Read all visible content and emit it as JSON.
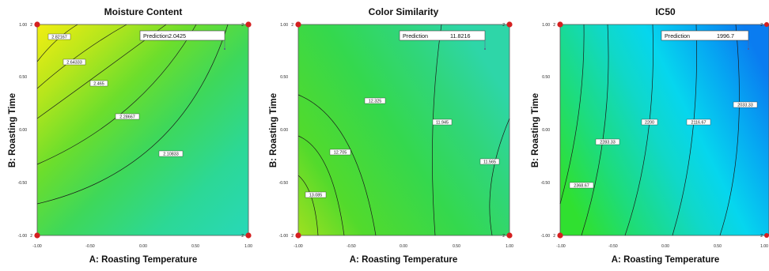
{
  "chart_data": [
    {
      "type": "contour",
      "title": "Moisture Content",
      "xlabel": "A: Roasting Temperature",
      "ylabel": "B: Roasting Time",
      "xlim": [
        -1.0,
        1.0
      ],
      "ylim": [
        -1.0,
        1.0
      ],
      "x_ticks": [
        "-1.00",
        "-0.50",
        "0.00",
        "0.50",
        "1.00"
      ],
      "y_ticks": [
        "1.00",
        "0.50",
        "0.00",
        "-0.50",
        "-1.00"
      ],
      "corner_labels": [
        "2",
        "2",
        "2",
        "2"
      ],
      "contour_labels": [
        "2.82167",
        "2.64333",
        "2.465",
        "2.28667",
        "2.10833"
      ],
      "prediction": {
        "label": "Prediction",
        "value": "2.0425"
      },
      "colors": {
        "low": "#28d8b8",
        "high": "#f2ee12"
      }
    },
    {
      "type": "contour",
      "title": "Color Similarity",
      "xlabel": "A: Roasting Temperature",
      "ylabel": "B: Roasting Time",
      "xlim": [
        -1.0,
        1.0
      ],
      "ylim": [
        -1.0,
        1.0
      ],
      "x_ticks": [
        "-1.00",
        "-0.50",
        "0.00",
        "0.50",
        "1.00"
      ],
      "y_ticks": [
        "1.00",
        "0.50",
        "0.00",
        "-0.50",
        "-1.00"
      ],
      "corner_labels": [
        "2",
        "2",
        "2",
        "2"
      ],
      "contour_labels": [
        "12.325",
        "12.705",
        "13.085",
        "11.945",
        "11.565"
      ],
      "prediction": {
        "label": "Prediction",
        "value": "11.8216"
      },
      "colors": {
        "low": "#2ed6a8",
        "high": "#9ee020"
      }
    },
    {
      "type": "contour",
      "title": "IC50",
      "xlabel": "A: Roasting Temperature",
      "ylabel": "B: Roasting Time",
      "xlim": [
        -1.0,
        1.0
      ],
      "ylim": [
        -1.0,
        1.0
      ],
      "x_ticks": [
        "-1.00",
        "-0.50",
        "0.00",
        "0.50",
        "1.00"
      ],
      "y_ticks": [
        "1.00",
        "0.50",
        "0.00",
        "-0.50",
        "-1.00"
      ],
      "corner_labels": [
        "2",
        "2",
        "2",
        "2"
      ],
      "contour_labels": [
        "2368.67",
        "2283.33",
        "2200",
        "2116.67",
        "2033.33"
      ],
      "prediction": {
        "label": "Prediction",
        "value": "1996.7"
      },
      "colors": {
        "low": "#0a7cf0",
        "high": "#30e030"
      }
    }
  ]
}
